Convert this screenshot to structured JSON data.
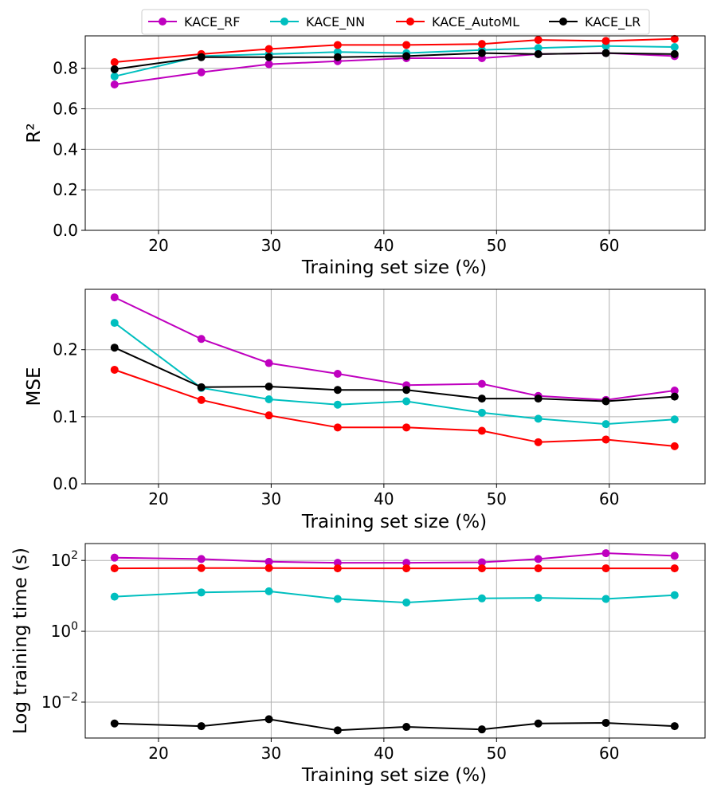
{
  "chart_data": [
    {
      "type": "line",
      "xlabel": "Training set size (%)",
      "ylabel": "R²",
      "xlim": [
        13.5,
        68.5
      ],
      "ylim": [
        0.0,
        0.96
      ],
      "yscale": "linear",
      "xticks": [
        20,
        30,
        40,
        50,
        60
      ],
      "yticks": [
        0.0,
        0.2,
        0.4,
        0.6,
        0.8
      ],
      "ytick_labels": [
        "0.0",
        "0.2",
        "0.4",
        "0.6",
        "0.8"
      ],
      "grid": true,
      "legend": "above",
      "x": [
        16.1,
        23.8,
        29.8,
        35.9,
        42.0,
        48.7,
        53.7,
        59.7,
        65.8
      ],
      "series": [
        {
          "name": "KACE_RF",
          "color": "#bf00bf",
          "values": [
            0.72,
            0.78,
            0.82,
            0.835,
            0.85,
            0.85,
            0.87,
            0.875,
            0.86
          ]
        },
        {
          "name": "KACE_NN",
          "color": "#00bfbf",
          "values": [
            0.76,
            0.86,
            0.87,
            0.88,
            0.875,
            0.89,
            0.9,
            0.91,
            0.905
          ]
        },
        {
          "name": "KACE_AutoML",
          "color": "#ff0000",
          "values": [
            0.83,
            0.87,
            0.895,
            0.915,
            0.915,
            0.92,
            0.94,
            0.935,
            0.945
          ]
        },
        {
          "name": "KACE_LR",
          "color": "#000000",
          "values": [
            0.795,
            0.855,
            0.855,
            0.855,
            0.86,
            0.875,
            0.87,
            0.875,
            0.87
          ]
        }
      ]
    },
    {
      "type": "line",
      "xlabel": "Training set size (%)",
      "ylabel": "MSE",
      "xlim": [
        13.5,
        68.5
      ],
      "ylim": [
        0.0,
        0.29
      ],
      "yscale": "linear",
      "xticks": [
        20,
        30,
        40,
        50,
        60
      ],
      "yticks": [
        0.0,
        0.1,
        0.2
      ],
      "ytick_labels": [
        "0.0",
        "0.1",
        "0.2"
      ],
      "grid": true,
      "x": [
        16.1,
        23.8,
        29.8,
        35.9,
        42.0,
        48.7,
        53.7,
        59.7,
        65.8
      ],
      "series": [
        {
          "name": "KACE_RF",
          "color": "#bf00bf",
          "values": [
            0.278,
            0.216,
            0.18,
            0.164,
            0.147,
            0.149,
            0.131,
            0.125,
            0.139
          ]
        },
        {
          "name": "KACE_NN",
          "color": "#00bfbf",
          "values": [
            0.24,
            0.143,
            0.126,
            0.118,
            0.123,
            0.106,
            0.097,
            0.089,
            0.096
          ]
        },
        {
          "name": "KACE_AutoML",
          "color": "#ff0000",
          "values": [
            0.17,
            0.125,
            0.102,
            0.084,
            0.084,
            0.079,
            0.062,
            0.066,
            0.056
          ]
        },
        {
          "name": "KACE_LR",
          "color": "#000000",
          "values": [
            0.203,
            0.144,
            0.145,
            0.14,
            0.14,
            0.127,
            0.127,
            0.123,
            0.13
          ]
        }
      ]
    },
    {
      "type": "line",
      "xlabel": "Training set size (%)",
      "ylabel": "Log training time (s)",
      "xlim": [
        13.5,
        68.5
      ],
      "ylim": [
        0.00097,
        300
      ],
      "yscale": "log",
      "xticks": [
        20,
        30,
        40,
        50,
        60
      ],
      "yticks": [
        0.01,
        1,
        100
      ],
      "ytick_labels": [
        [
          "10",
          "−2"
        ],
        [
          "10",
          "0"
        ],
        [
          "10",
          "2"
        ]
      ],
      "grid": true,
      "x": [
        16.1,
        23.8,
        29.8,
        35.9,
        42.0,
        48.7,
        53.7,
        59.7,
        65.8
      ],
      "series": [
        {
          "name": "KACE_RF",
          "color": "#bf00bf",
          "values": [
            120,
            110,
            92,
            86,
            86,
            89,
            110,
            160,
            135
          ]
        },
        {
          "name": "KACE_NN",
          "color": "#00bfbf",
          "values": [
            9.5,
            12.5,
            13.5,
            8.2,
            6.5,
            8.5,
            8.8,
            8.2,
            10.5
          ]
        },
        {
          "name": "KACE_AutoML",
          "color": "#ff0000",
          "values": [
            60,
            61,
            61,
            60,
            60,
            60,
            60,
            60,
            60
          ]
        },
        {
          "name": "KACE_LR",
          "color": "#000000",
          "values": [
            0.0025,
            0.0021,
            0.0033,
            0.0016,
            0.002,
            0.0017,
            0.0025,
            0.0026,
            0.0021
          ]
        }
      ]
    }
  ]
}
